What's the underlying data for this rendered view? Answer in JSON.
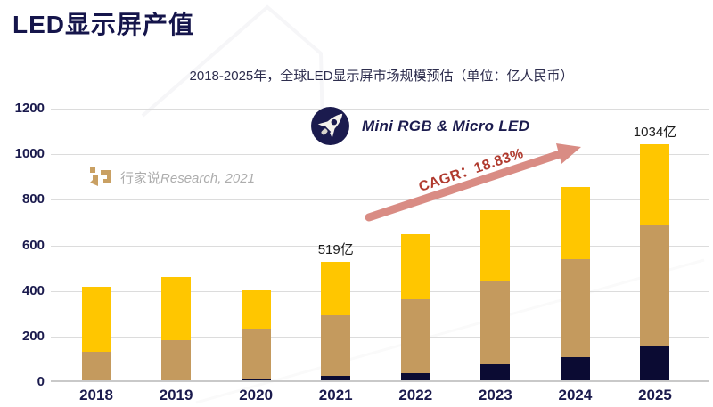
{
  "page": {
    "title": "LED显示屏产值",
    "subtitle": "2018-2025年，全球LED显示屏市场规模预估（单位：亿人民币）"
  },
  "watermark": {
    "brand": "行家说",
    "rest": "Research, 2021"
  },
  "badge": {
    "icon": "rocket-icon",
    "label": "Mini RGB & Micro LED"
  },
  "cagr": {
    "label": "CAGR：18.83%"
  },
  "colors": {
    "title_navy": "#15154B",
    "segment_navy": "#0B0B33",
    "segment_tan": "#C49A5E",
    "segment_yellow": "#FFC600",
    "arrow": "#D98C84",
    "cagr_text": "#B03A2E",
    "gridline": "#DCDCDC",
    "watermark_gold": "#C9A063"
  },
  "chart_data": {
    "type": "bar",
    "stacked": true,
    "title": "2018-2025年，全球LED显示屏市场规模预估（单位：亿人民币）",
    "xlabel": "",
    "ylabel": "",
    "categories": [
      "2018",
      "2019",
      "2020",
      "2021",
      "2022",
      "2023",
      "2024",
      "2025"
    ],
    "series": [
      {
        "name": "bottom segment (dark navy)",
        "color": "#0B0B33",
        "values": [
          0,
          0,
          8,
          18,
          33,
          70,
          100,
          148
        ]
      },
      {
        "name": "middle segment (tan)",
        "color": "#C49A5E",
        "values": [
          125,
          175,
          218,
          267,
          322,
          368,
          430,
          532
        ]
      },
      {
        "name": "top segment (yellow)",
        "color": "#FFC600",
        "values": [
          285,
          280,
          170,
          234,
          285,
          307,
          320,
          354
        ]
      }
    ],
    "totals": [
      410,
      455,
      396,
      519,
      640,
      745,
      850,
      1034
    ],
    "annotations": [
      {
        "category": "2021",
        "text": "519亿"
      },
      {
        "category": "2025",
        "text": "1034亿"
      }
    ],
    "y_ticks": [
      0,
      200,
      400,
      600,
      800,
      1000,
      1200
    ],
    "ylim": [
      0,
      1200
    ],
    "grid": true,
    "legend": "none"
  }
}
